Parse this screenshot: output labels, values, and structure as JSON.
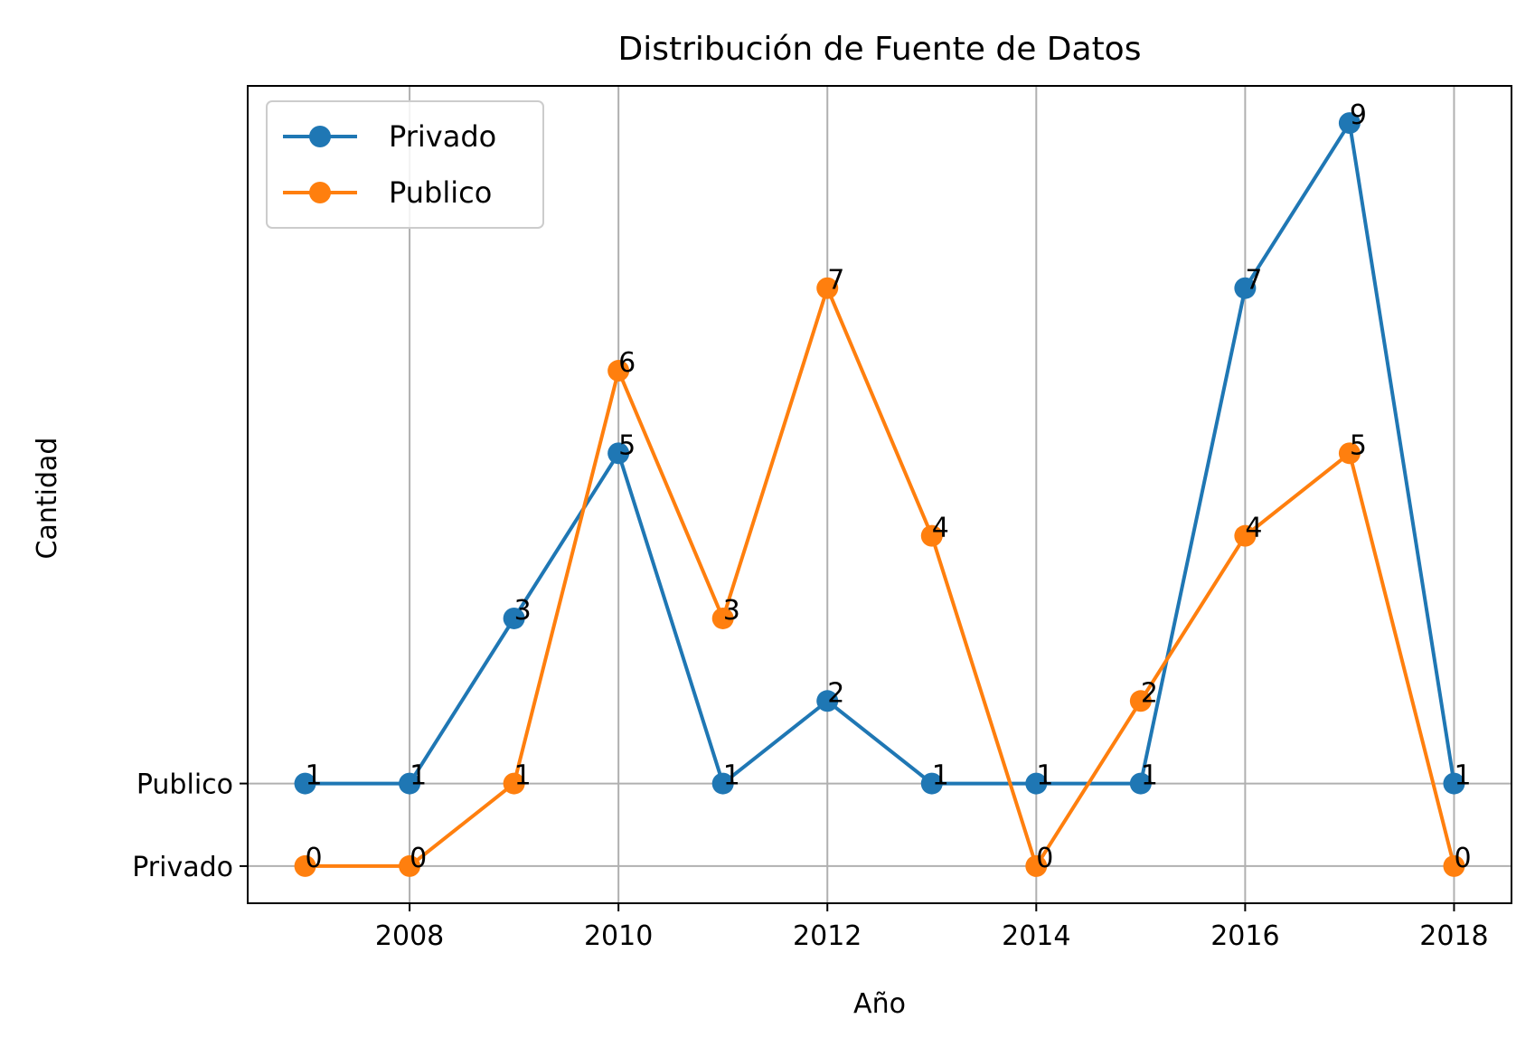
{
  "chart_data": {
    "type": "line",
    "title": "Distribución de Fuente de Datos",
    "xlabel": "Año",
    "ylabel": "Cantidad",
    "x": [
      2007,
      2008,
      2009,
      2010,
      2011,
      2012,
      2013,
      2014,
      2015,
      2016,
      2017,
      2018
    ],
    "xlim": [
      2006.45,
      2018.55
    ],
    "ylim": [
      -0.45,
      9.45
    ],
    "x_ticks": [
      2008,
      2010,
      2012,
      2014,
      2016,
      2018
    ],
    "y_ticks": [
      {
        "value": 0,
        "label": "Privado"
      },
      {
        "value": 1,
        "label": "Publico"
      }
    ],
    "grid": true,
    "legend_position": "top-left",
    "series": [
      {
        "name": "Privado",
        "color": "#1f77b4",
        "values": [
          1,
          1,
          3,
          5,
          1,
          2,
          1,
          1,
          1,
          7,
          9,
          1
        ]
      },
      {
        "name": "Publico",
        "color": "#ff7f0e",
        "values": [
          0,
          0,
          1,
          6,
          3,
          7,
          4,
          0,
          2,
          4,
          5,
          0
        ]
      }
    ]
  }
}
